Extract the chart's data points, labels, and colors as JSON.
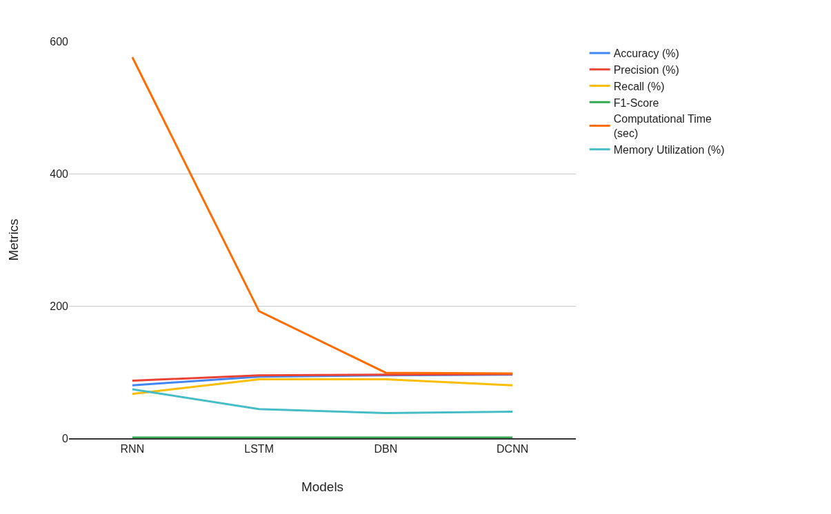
{
  "chart_data": {
    "type": "line",
    "xlabel": "Models",
    "ylabel": "Metrics",
    "categories": [
      "RNN",
      "LSTM",
      "DBN",
      "DCNN"
    ],
    "series": [
      {
        "name": "Accuracy (%)",
        "color": "#4285f4",
        "values": [
          80,
          93,
          95,
          96
        ]
      },
      {
        "name": "Precision (%)",
        "color": "#ea4335",
        "values": [
          87,
          95,
          96,
          97
        ]
      },
      {
        "name": "Recall (%)",
        "color": "#fbbc04",
        "values": [
          67,
          89,
          89,
          80
        ]
      },
      {
        "name": "F1-Score",
        "color": "#34a853",
        "values": [
          1,
          1,
          1,
          1
        ]
      },
      {
        "name": "Computational Time\n(sec)",
        "color": "#ff6d01",
        "values": [
          576,
          192,
          99,
          98
        ]
      },
      {
        "name": "Memory Utilization (%)",
        "color": "#46bdc6",
        "values": [
          74,
          44,
          38,
          40
        ]
      }
    ],
    "ylim": [
      0,
      600
    ],
    "yticks": [
      0,
      200,
      400,
      600
    ],
    "grid": "y",
    "legend": "top right",
    "marker": "none",
    "line_style": "solid"
  }
}
